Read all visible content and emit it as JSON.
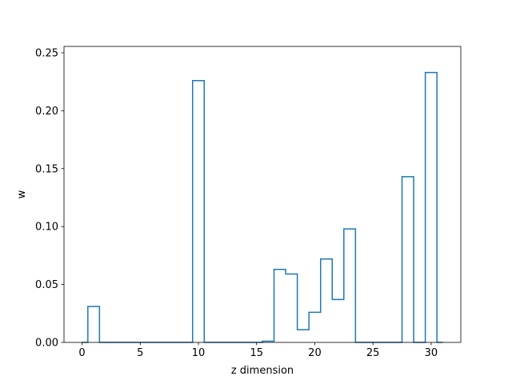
{
  "chart_data": {
    "type": "step",
    "xlabel": "z dimension",
    "ylabel": "w",
    "xlim": [
      -1.55,
      32.55
    ],
    "ylim": [
      0.0,
      0.2555
    ],
    "x_ticks": [
      0,
      5,
      10,
      15,
      20,
      25,
      30
    ],
    "x_tick_labels": [
      "0",
      "5",
      "10",
      "15",
      "20",
      "25",
      "30"
    ],
    "y_ticks": [
      0.0,
      0.05,
      0.1,
      0.15,
      0.2,
      0.25
    ],
    "y_tick_labels": [
      "0.00",
      "0.05",
      "0.10",
      "0.15",
      "0.20",
      "0.25"
    ],
    "grid": false,
    "legend": "none",
    "line_color": "#1f77b4",
    "x": [
      0,
      1,
      2,
      3,
      4,
      5,
      6,
      7,
      8,
      9,
      10,
      11,
      12,
      13,
      14,
      15,
      16,
      17,
      18,
      19,
      20,
      21,
      22,
      23,
      24,
      25,
      26,
      27,
      28,
      29,
      30,
      31
    ],
    "values": [
      0.0,
      0.031,
      0.0,
      0.0,
      0.0,
      0.0,
      0.0,
      0.0,
      0.0,
      0.0,
      0.226,
      0.0,
      0.0,
      0.0,
      0.0,
      0.0,
      0.001,
      0.063,
      0.059,
      0.011,
      0.026,
      0.072,
      0.037,
      0.098,
      0.0,
      0.0,
      0.0,
      0.0,
      0.143,
      0.0,
      0.233,
      0.0
    ]
  }
}
